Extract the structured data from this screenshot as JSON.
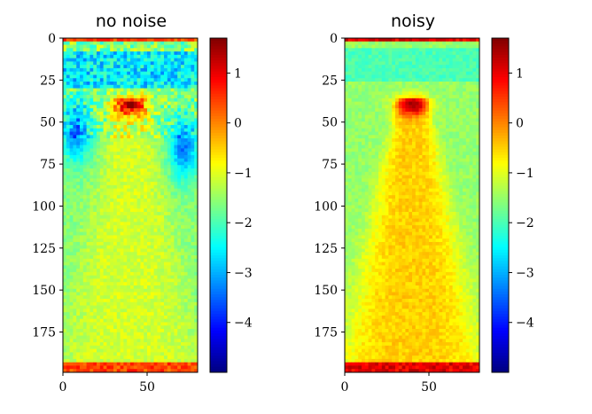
{
  "chart_data": [
    {
      "type": "heatmap",
      "title": "no noise",
      "variant": "clean",
      "xlabel": "",
      "ylabel": "",
      "xlim": [
        0,
        80
      ],
      "ylim": [
        199,
        0
      ],
      "xticks": [
        0,
        50
      ],
      "yticks": [
        0,
        25,
        50,
        75,
        100,
        125,
        150,
        175
      ],
      "colormap": "jet",
      "colorbar": {
        "range": [
          -5.0,
          1.7
        ],
        "ticks": [
          1,
          0,
          -1,
          -2,
          -3,
          -4
        ]
      },
      "description_values": {
        "top_band_rows": [
          0,
          5
        ],
        "hotspot_center": [
          40,
          40
        ],
        "hotspot_value": 1.2,
        "background_value": -1.2,
        "dark_side_regions_value": -3.5
      }
    },
    {
      "type": "heatmap",
      "title": "noisy",
      "variant": "noisy",
      "xlabel": "",
      "ylabel": "",
      "xlim": [
        0,
        80
      ],
      "ylim": [
        199,
        0
      ],
      "xticks": [
        0,
        50
      ],
      "yticks": [
        0,
        25,
        50,
        75,
        100,
        125,
        150,
        175
      ],
      "colormap": "jet",
      "colorbar": {
        "range": [
          -5.0,
          1.7
        ],
        "ticks": [
          1,
          0,
          -1,
          -2,
          -3,
          -4
        ]
      },
      "description_values": {
        "top_band_rows": [
          0,
          5
        ],
        "hotspot_center": [
          40,
          40
        ],
        "hotspot_value": 1.2,
        "background_value": -0.5,
        "edge_value": -1.7
      }
    }
  ]
}
